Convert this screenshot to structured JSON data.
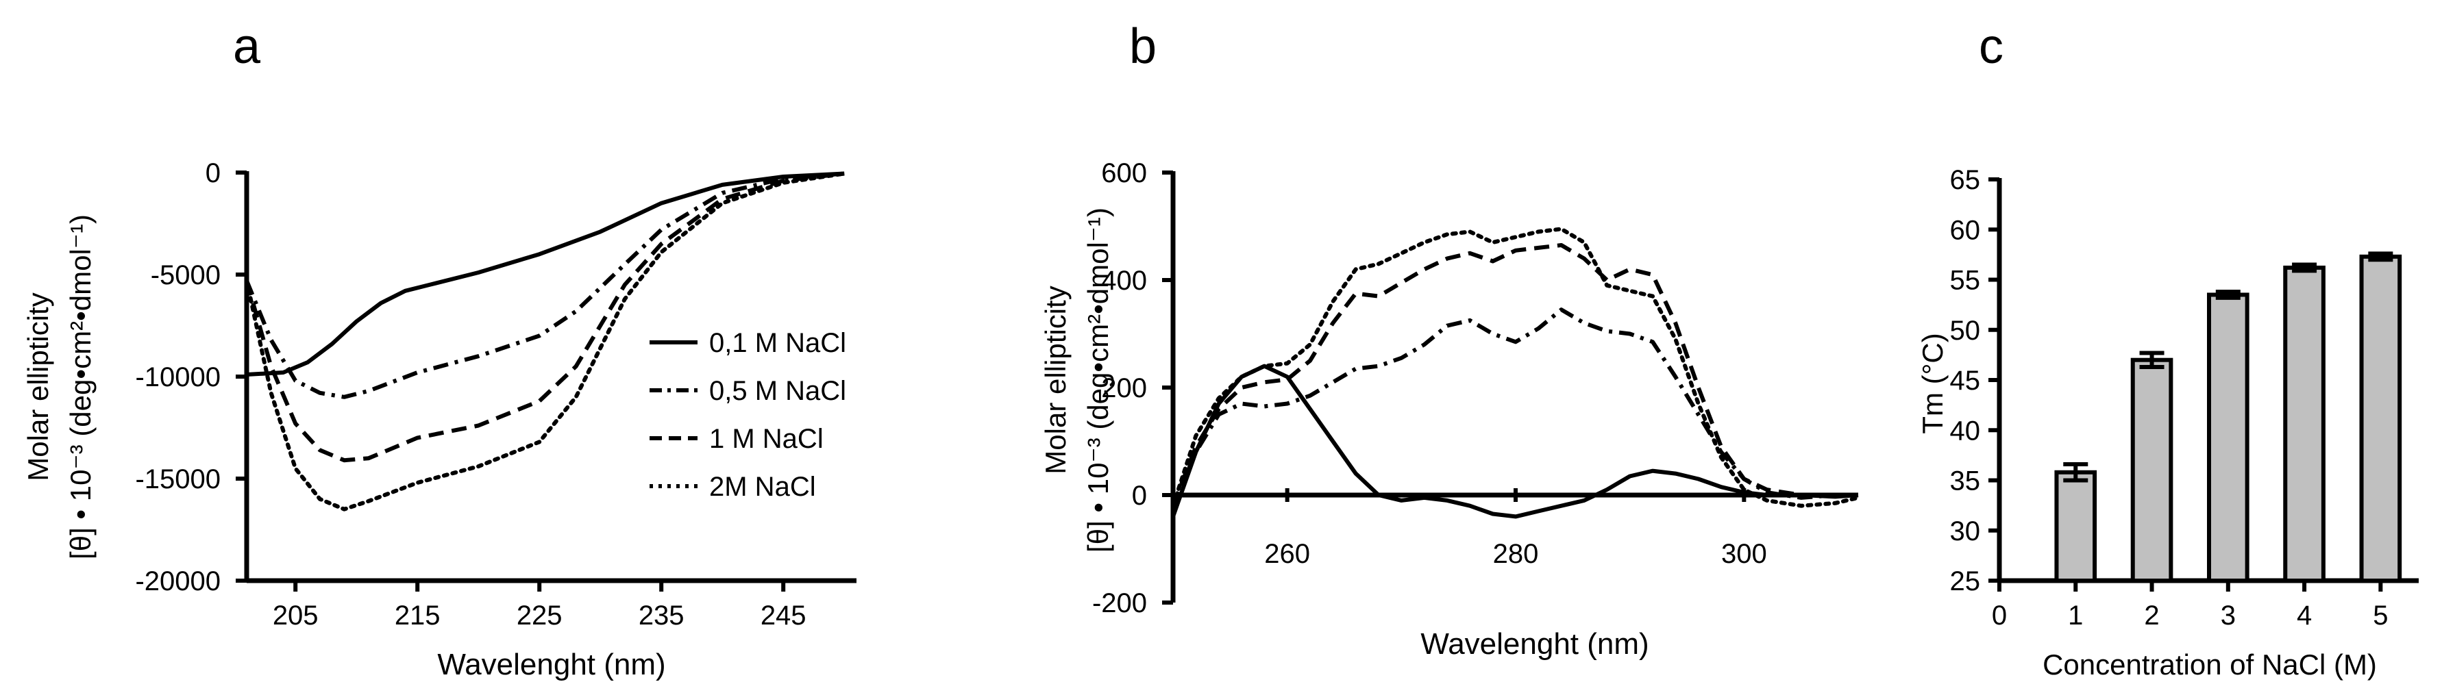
{
  "chart_data": [
    {
      "panel": "a",
      "type": "line",
      "xlabel": "Wavelenght (nm)",
      "ylabel_line1": "Molar ellipticity",
      "ylabel_line2": "[θ] • 10⁻³ (deg•cm²•dmol⁻¹)",
      "xlim": [
        201,
        251
      ],
      "ylim": [
        -20000,
        0
      ],
      "xticks": [
        205,
        215,
        225,
        235,
        245
      ],
      "xtick_labels": [
        "205",
        "215",
        "225",
        "235",
        "245"
      ],
      "yticks": [
        0,
        -5000,
        -10000,
        -15000,
        -20000
      ],
      "ytick_labels": [
        "0",
        "-5000",
        "-10000",
        "-15000",
        "-20000"
      ],
      "series": [
        {
          "name": "0,1 M NaCl",
          "style": "solid",
          "x": [
            201,
            204,
            206,
            208,
            210,
            212,
            214,
            216,
            220,
            225,
            230,
            235,
            240,
            245,
            250
          ],
          "y": [
            -9900,
            -9800,
            -9300,
            -8400,
            -7300,
            -6400,
            -5800,
            -5500,
            -4900,
            -4000,
            -2900,
            -1500,
            -600,
            -200,
            -50
          ]
        },
        {
          "name": "0,5 M NaCl",
          "style": "dashdot",
          "x": [
            201,
            203,
            205,
            207,
            209,
            211,
            215,
            220,
            225,
            228,
            232,
            235,
            240,
            245,
            250
          ],
          "y": [
            -5300,
            -8200,
            -10200,
            -10800,
            -11000,
            -10700,
            -9800,
            -9000,
            -8000,
            -6800,
            -4500,
            -2800,
            -1000,
            -300,
            -50
          ]
        },
        {
          "name": "1 M NaCl",
          "style": "dashed",
          "x": [
            201,
            203,
            205,
            207,
            209,
            211,
            215,
            220,
            225,
            228,
            232,
            235,
            240,
            245,
            250
          ],
          "y": [
            -5300,
            -9500,
            -12300,
            -13600,
            -14100,
            -14000,
            -13000,
            -12400,
            -11200,
            -9500,
            -5500,
            -3500,
            -1300,
            -400,
            -50
          ]
        },
        {
          "name": "2M NaCl",
          "style": "dotted",
          "x": [
            201,
            203,
            205,
            207,
            209,
            211,
            215,
            220,
            225,
            228,
            232,
            235,
            240,
            245,
            250
          ],
          "y": [
            -5300,
            -10800,
            -14500,
            -16000,
            -16500,
            -16100,
            -15200,
            -14400,
            -13200,
            -11000,
            -6200,
            -3900,
            -1500,
            -500,
            -50
          ]
        }
      ],
      "legend": "center-right"
    },
    {
      "panel": "b",
      "type": "line",
      "xlabel": "Wavelenght (nm)",
      "ylabel_line1": "Molar ellipticity",
      "ylabel_line2": "[θ] • 10⁻³ (deg•cm²•dmol⁻¹)",
      "xlim": [
        250,
        310
      ],
      "ylim": [
        -200,
        600
      ],
      "xticks": [
        260,
        280,
        300
      ],
      "xtick_labels": [
        "260",
        "280",
        "300"
      ],
      "yticks": [
        -200,
        0,
        200,
        400,
        600
      ],
      "ytick_labels": [
        "-200",
        "0",
        "200",
        "400",
        "600"
      ],
      "series": [
        {
          "name": "0,1 M NaCl",
          "style": "solid",
          "x": [
            250,
            252,
            254,
            256,
            258,
            260,
            262,
            264,
            266,
            268,
            270,
            272,
            274,
            276,
            278,
            280,
            282,
            284,
            286,
            288,
            290,
            292,
            294,
            296,
            298,
            300,
            302,
            305,
            308,
            310
          ],
          "y": [
            -40,
            80,
            170,
            220,
            240,
            220,
            160,
            100,
            40,
            0,
            -10,
            -5,
            -10,
            -20,
            -35,
            -40,
            -30,
            -20,
            -10,
            10,
            35,
            45,
            40,
            30,
            15,
            5,
            0,
            0,
            -3,
            0
          ]
        },
        {
          "name": "0,5 M NaCl",
          "style": "dashdot",
          "x": [
            250,
            252,
            254,
            256,
            258,
            260,
            262,
            264,
            266,
            268,
            270,
            272,
            274,
            276,
            278,
            280,
            282,
            284,
            286,
            288,
            290,
            292,
            294,
            296,
            298,
            300,
            302,
            305,
            308,
            310
          ],
          "y": [
            -20,
            80,
            150,
            170,
            165,
            170,
            185,
            210,
            235,
            240,
            255,
            280,
            315,
            325,
            300,
            285,
            310,
            345,
            320,
            305,
            300,
            285,
            220,
            150,
            80,
            30,
            5,
            -5,
            0,
            0
          ]
        },
        {
          "name": "1 M NaCl",
          "style": "dashed",
          "x": [
            250,
            252,
            254,
            256,
            258,
            260,
            262,
            264,
            266,
            268,
            270,
            272,
            274,
            276,
            278,
            280,
            282,
            284,
            286,
            288,
            290,
            292,
            294,
            296,
            298,
            300,
            302,
            305,
            308,
            310
          ],
          "y": [
            -20,
            90,
            160,
            200,
            210,
            215,
            250,
            320,
            375,
            370,
            395,
            420,
            440,
            450,
            435,
            455,
            460,
            465,
            440,
            400,
            420,
            410,
            320,
            200,
            90,
            30,
            10,
            0,
            0,
            0
          ]
        },
        {
          "name": "2M NaCl",
          "style": "dotted",
          "x": [
            250,
            252,
            254,
            256,
            258,
            260,
            262,
            264,
            266,
            268,
            270,
            272,
            274,
            276,
            278,
            280,
            282,
            284,
            286,
            288,
            290,
            292,
            294,
            296,
            298,
            300,
            302,
            305,
            308,
            310
          ],
          "y": [
            -20,
            110,
            180,
            220,
            240,
            245,
            280,
            360,
            420,
            430,
            450,
            470,
            485,
            490,
            470,
            480,
            490,
            495,
            470,
            390,
            380,
            370,
            290,
            170,
            70,
            10,
            -10,
            -20,
            -15,
            -5
          ]
        }
      ]
    },
    {
      "panel": "c",
      "type": "bar",
      "xlabel": "Concentration of NaCl (M)",
      "ylabel": "Tm (°C)",
      "xlim": [
        0,
        5.5
      ],
      "ylim": [
        25,
        65
      ],
      "xticks": [
        0,
        1,
        2,
        3,
        4,
        5
      ],
      "xtick_labels": [
        "0",
        "1",
        "2",
        "3",
        "4",
        "5"
      ],
      "yticks": [
        25,
        30,
        35,
        40,
        45,
        50,
        55,
        60,
        65
      ],
      "ytick_labels": [
        "25",
        "30",
        "35",
        "40",
        "45",
        "50",
        "55",
        "60",
        "65"
      ],
      "categories": [
        1,
        2,
        3,
        4,
        5
      ],
      "values": [
        35.8,
        47.0,
        53.5,
        56.2,
        57.3
      ],
      "errors": [
        0.8,
        0.7,
        0.3,
        0.3,
        0.3
      ]
    }
  ],
  "labels": {
    "a": "a",
    "b": "b",
    "c": "c"
  },
  "colors": {
    "ink": "#000000",
    "bar_fill": "#c0c0c0"
  }
}
